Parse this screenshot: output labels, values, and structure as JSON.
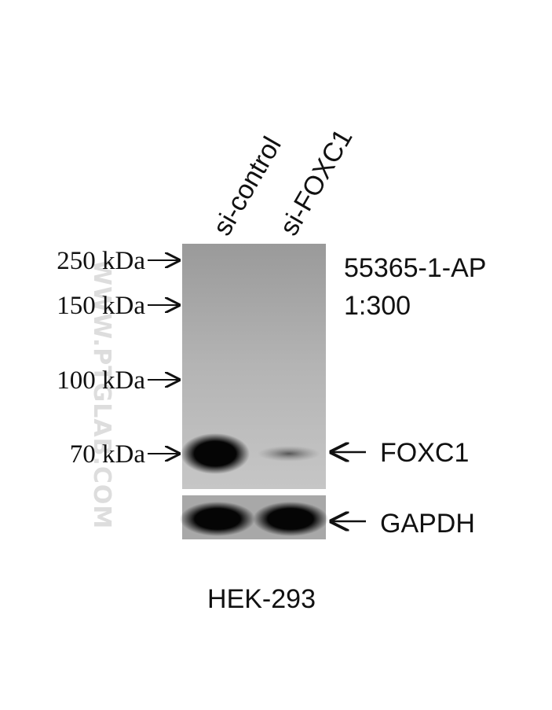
{
  "lanes": [
    "si-control",
    "si-FOXC1"
  ],
  "markers": [
    "250 kDa",
    "150 kDa",
    "100 kDa",
    "70 kDa"
  ],
  "antibody": {
    "catalog": "55365-1-AP",
    "dilution": "1:300"
  },
  "bands": [
    "FOXC1",
    "GAPDH"
  ],
  "cell_line": "HEK-293",
  "watermark": "WWW.PTGLAB.COM"
}
